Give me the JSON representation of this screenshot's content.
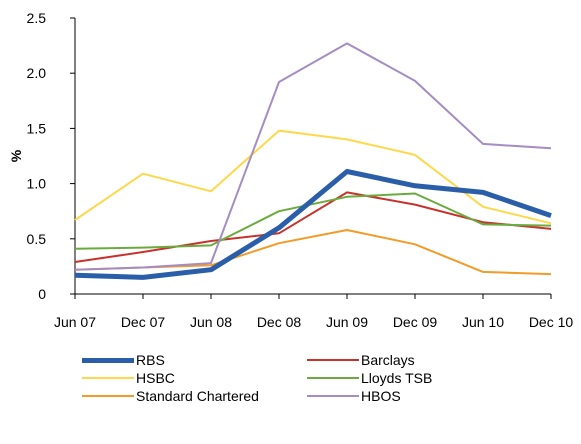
{
  "chart_data": {
    "type": "line",
    "ylabel": "%",
    "ylim": [
      0,
      2.5
    ],
    "yticks": [
      "0",
      "0.5",
      "1.0",
      "1.5",
      "2.0",
      "2.5"
    ],
    "categories": [
      "Jun 07",
      "Dec 07",
      "Jun 08",
      "Dec 08",
      "Jun 09",
      "Dec 09",
      "Jun 10",
      "Dec 10"
    ],
    "series": [
      {
        "name": "RBS",
        "color": "#2a5ea8",
        "bold": true,
        "values": [
          0.17,
          0.15,
          0.22,
          0.6,
          1.11,
          0.98,
          0.92,
          0.71
        ]
      },
      {
        "name": "Barclays",
        "color": "#c8322d",
        "bold": false,
        "values": [
          0.29,
          0.38,
          0.48,
          0.55,
          0.92,
          0.81,
          0.65,
          0.59
        ]
      },
      {
        "name": "HSBC",
        "color": "#ffd84a",
        "bold": false,
        "values": [
          0.67,
          1.09,
          0.93,
          1.48,
          1.4,
          1.26,
          0.79,
          0.64
        ]
      },
      {
        "name": "Lloyds TSB",
        "color": "#6aab3f",
        "bold": false,
        "values": [
          0.41,
          0.42,
          0.44,
          0.75,
          0.88,
          0.91,
          0.63,
          0.62
        ]
      },
      {
        "name": "Standard Chartered",
        "color": "#f29b26",
        "bold": false,
        "values": [
          0.22,
          0.24,
          0.26,
          0.46,
          0.58,
          0.45,
          0.2,
          0.18
        ]
      },
      {
        "name": "HBOS",
        "color": "#a48cc4",
        "bold": false,
        "values": [
          0.22,
          0.24,
          0.28,
          1.92,
          2.27,
          1.93,
          1.36,
          1.32
        ]
      }
    ],
    "legend": "bottom, two columns"
  }
}
